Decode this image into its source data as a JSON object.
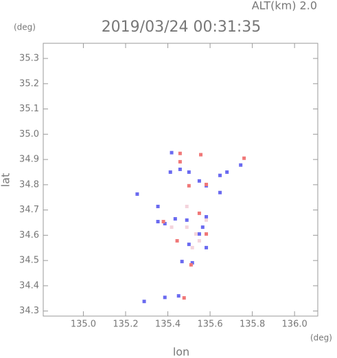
{
  "chart_data": {
    "type": "scatter",
    "title": "2019/03/24 00:31:35",
    "annotation": "ALT(km) 2.0",
    "y_unit": "(deg)",
    "x_unit": "(deg)",
    "xlabel": "lon",
    "ylabel": "lat",
    "xlim": [
      134.81,
      136.11
    ],
    "ylim": [
      34.28,
      35.36
    ],
    "xticks": [
      {
        "value": 135,
        "label": "135.0"
      },
      135.2,
      135.4,
      135.6,
      135.8,
      {
        "value": 136,
        "label": "136.0"
      }
    ],
    "yticks": [
      34.3,
      34.4,
      34.5,
      34.6,
      34.7,
      34.8,
      34.9,
      {
        "value": 35,
        "label": "35.0"
      },
      35.1,
      35.2,
      35.3
    ],
    "series": [
      {
        "color": "#6a6af0",
        "x": [
          135.418,
          135.458,
          135.5,
          135.255,
          135.353,
          135.386,
          135.435,
          135.49,
          135.582,
          135.549,
          135.467,
          135.516,
          135.647,
          135.68,
          135.745,
          135.386,
          135.451,
          135.288,
          135.582,
          135.565,
          135.353,
          135.647,
          135.582,
          135.5,
          135.412,
          135.549
        ],
        "y": [
          34.927,
          34.861,
          34.85,
          34.763,
          34.654,
          34.646,
          34.665,
          34.66,
          34.673,
          34.605,
          34.496,
          34.491,
          34.837,
          34.85,
          34.878,
          34.354,
          34.36,
          34.338,
          34.796,
          34.632,
          34.714,
          34.769,
          34.551,
          34.564,
          34.85,
          34.815
        ]
      },
      {
        "color": "#f07878",
        "x": [
          135.458,
          135.556,
          135.761,
          135.582,
          135.458,
          135.582,
          135.51,
          135.477,
          135.444,
          135.379,
          135.549,
          135.5
        ],
        "y": [
          34.924,
          34.919,
          34.905,
          34.801,
          34.891,
          34.605,
          34.483,
          34.352,
          34.578,
          34.654,
          34.687,
          34.796
        ]
      },
      {
        "color": "#f4d4dc",
        "x": [
          135.49,
          135.533,
          135.516,
          135.549,
          135.582,
          135.418,
          135.49
        ],
        "y": [
          34.632,
          34.605,
          34.551,
          34.578,
          34.66,
          34.632,
          34.714
        ]
      }
    ]
  }
}
